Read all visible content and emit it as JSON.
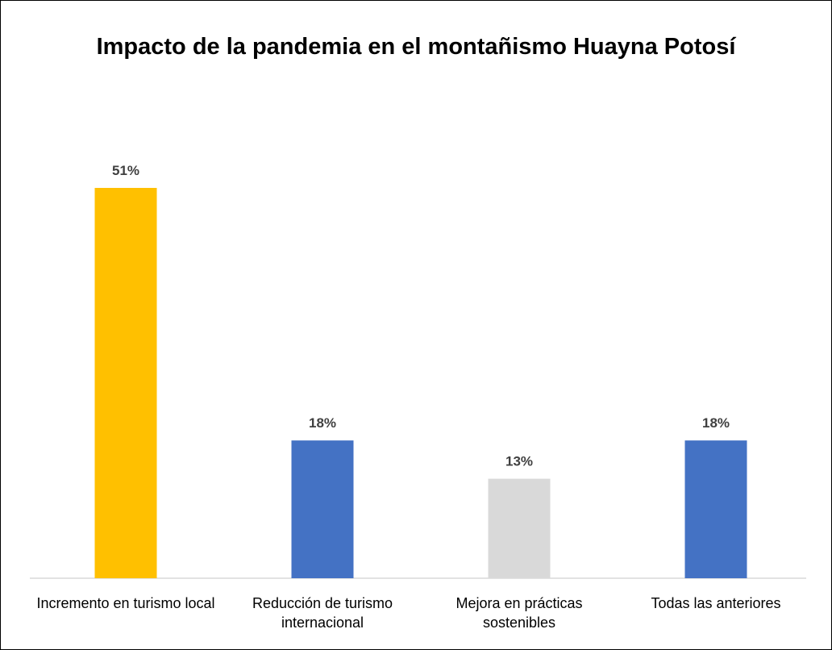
{
  "chart_data": {
    "type": "bar",
    "title": "Impacto de la pandemia en el montañismo Huayna Potosí",
    "categories": [
      "Incremento en turismo local",
      "Reducción de turismo internacional",
      "Mejora en prácticas sostenibles",
      "Todas las anteriores"
    ],
    "values": [
      51,
      18,
      13,
      18
    ],
    "value_labels": [
      "51%",
      "18%",
      "13%",
      "18%"
    ],
    "colors": [
      "#ffc000",
      "#4472c4",
      "#d9d9d9",
      "#4472c4"
    ]
  }
}
